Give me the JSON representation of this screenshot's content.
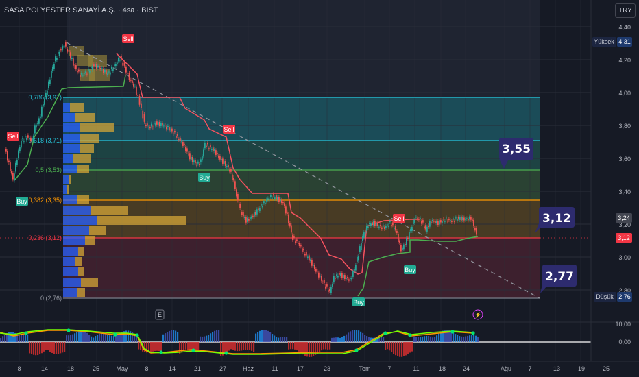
{
  "header": {
    "symbol": "SASA POLYESTER SANAYİ A.Ş. · 4sa · BIST",
    "currency_button": "TRY"
  },
  "price_axis": {
    "ticks": [
      "4,40",
      "4,20",
      "4,00",
      "3,80",
      "3,60",
      "3,40",
      "3,20",
      "3,00",
      "2,80"
    ],
    "high_label": "Yüksek",
    "high_value": "4,31",
    "low_label": "Düşük",
    "low_value": "2,76",
    "last_price_gray": "3,24",
    "last_price_red": "3,12"
  },
  "indicator_axis": {
    "ticks": [
      "10,00",
      "0,00"
    ]
  },
  "time_axis": {
    "labels": [
      "8",
      "14",
      "18",
      "25",
      "May",
      "8",
      "14",
      "21",
      "27",
      "Haz",
      "11",
      "17",
      "23",
      "Tem",
      "7",
      "11",
      "18",
      "24",
      "Ağu",
      "7",
      "13",
      "19",
      "25"
    ]
  },
  "fib_levels": [
    {
      "label": "0,786 (3,97)",
      "color": "#26c6da"
    },
    {
      "label": "0,618 (3,71)",
      "color": "#26c6da"
    },
    {
      "label": "0,5 (3,53)",
      "color": "#4caf50"
    },
    {
      "label": "0,382 (3,35)",
      "color": "#ff9800"
    },
    {
      "label": "0,236 (3,12)",
      "color": "#f23645"
    },
    {
      "label": "0 (2,76)",
      "color": "#787b86"
    }
  ],
  "callouts": [
    "3,55",
    "3,12",
    "2,77"
  ],
  "signals": {
    "sell": "Sell",
    "buy": "Buy"
  },
  "chart_markers": {
    "earnings": "E",
    "dividend": "⚡"
  },
  "colors": {
    "background": "#161a25",
    "up": "#26a69a",
    "down": "#ef5350",
    "callout": "#2d2b6e",
    "sell": "#f23645",
    "buy": "#22ab94"
  }
}
